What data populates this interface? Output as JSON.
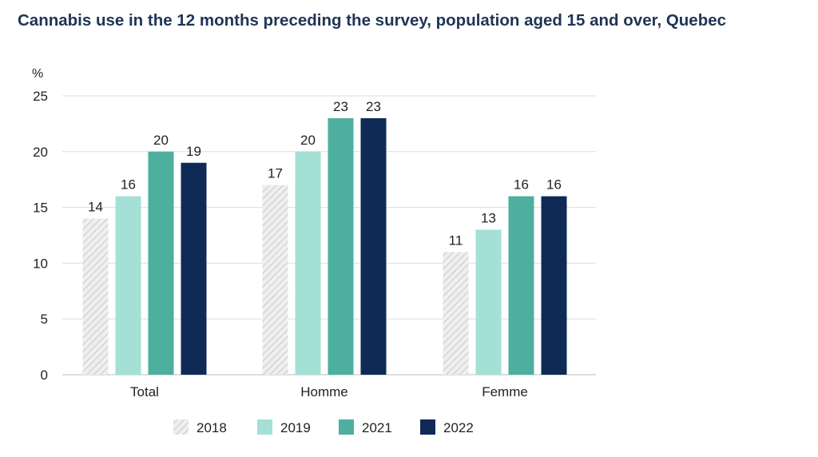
{
  "title": "Cannabis use in the 12 months preceding the survey, population aged 15 and over, Quebec",
  "chart_data": {
    "type": "bar",
    "title": "Cannabis use in the 12 months preceding the survey, population aged 15 and over, Quebec",
    "ylabel": "%",
    "xlabel": "",
    "ylim": [
      0,
      25
    ],
    "yticks": [
      0,
      5,
      10,
      15,
      20,
      25
    ],
    "grid": true,
    "legend_position": "bottom",
    "categories": [
      "Total",
      "Homme",
      "Femme"
    ],
    "series": [
      {
        "name": "2018",
        "values": [
          14,
          17,
          11
        ],
        "color": "#e6e6e6",
        "pattern": "hatched"
      },
      {
        "name": "2019",
        "values": [
          16,
          20,
          13
        ],
        "color": "#a4e0d6"
      },
      {
        "name": "2021",
        "values": [
          20,
          23,
          16
        ],
        "color": "#4daf9e"
      },
      {
        "name": "2022",
        "values": [
          19,
          23,
          16
        ],
        "color": "#0f2a56"
      }
    ]
  }
}
